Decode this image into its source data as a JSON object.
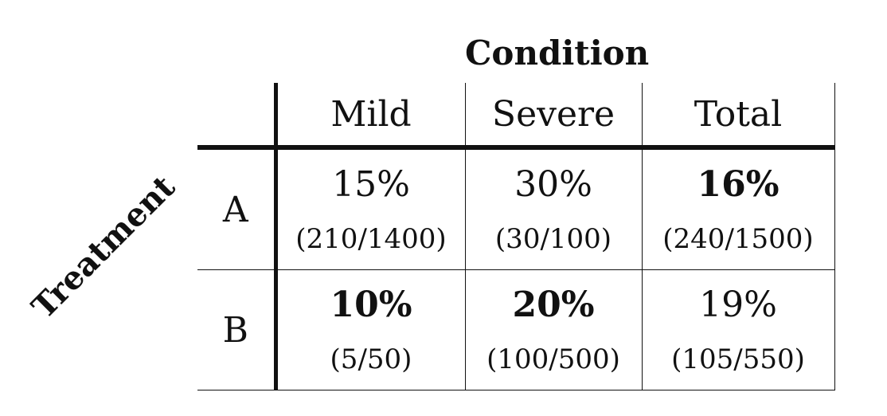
{
  "column_header": "Condition",
  "row_header": "Treatment",
  "columns": [
    "Mild",
    "Severe",
    "Total"
  ],
  "rows": [
    {
      "label": "A",
      "cells": [
        {
          "pct": "15%",
          "frac": "(210/1400)",
          "bold": false
        },
        {
          "pct": "30%",
          "frac": "(30/100)",
          "bold": false
        },
        {
          "pct": "16%",
          "frac": "(240/1500)",
          "bold": true
        }
      ]
    },
    {
      "label": "B",
      "cells": [
        {
          "pct": "10%",
          "frac": "(5/50)",
          "bold": true
        },
        {
          "pct": "20%",
          "frac": "(100/500)",
          "bold": true
        },
        {
          "pct": "19%",
          "frac": "(105/550)",
          "bold": false
        }
      ]
    }
  ]
}
